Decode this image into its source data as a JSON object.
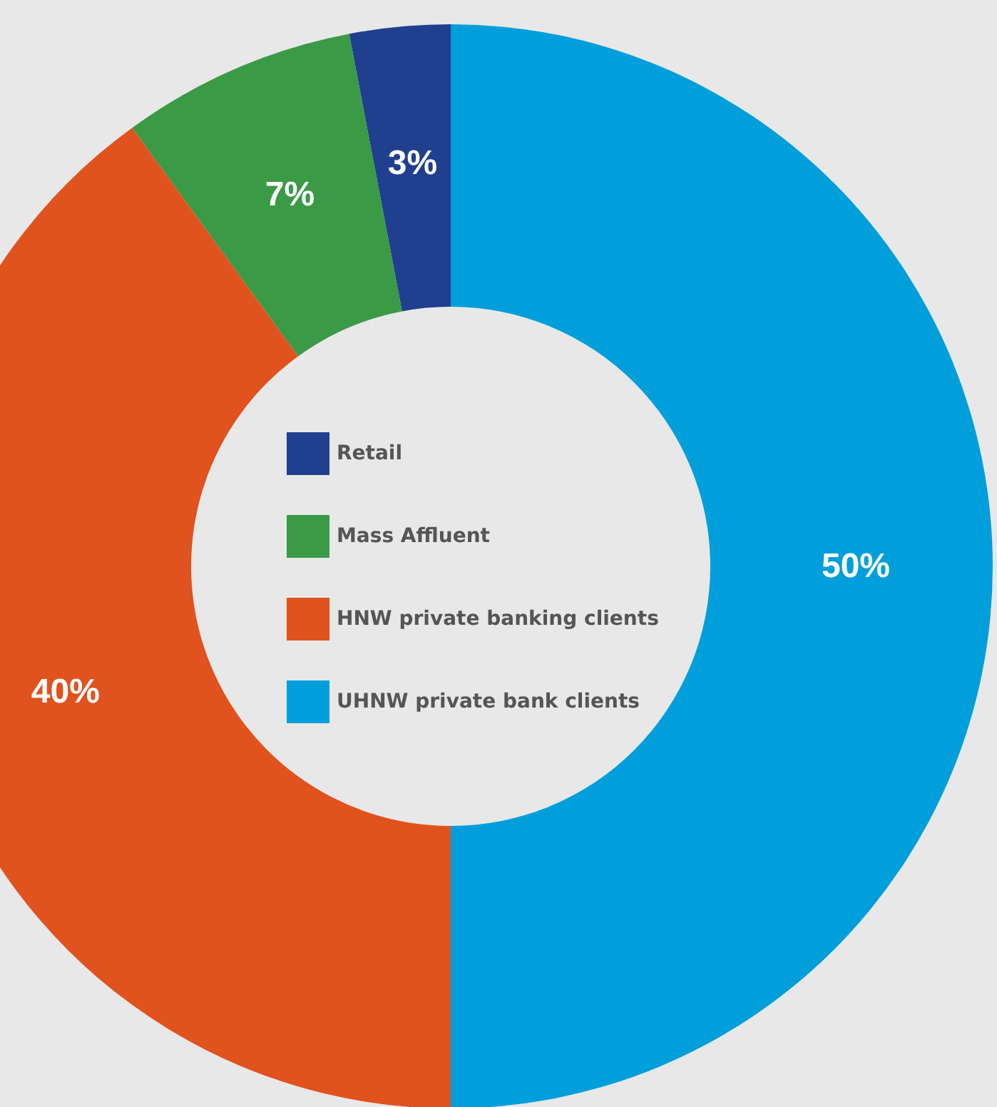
{
  "chart_data": {
    "type": "donut",
    "categories": [
      "Retail",
      "Mass Affluent",
      "HNW private banking clients",
      "UHNW private bank clients"
    ],
    "values": [
      3,
      7,
      40,
      50
    ],
    "colors": [
      "#203f8f",
      "#3a9a46",
      "#e0521e",
      "#009fdb"
    ],
    "value_labels": [
      "3%",
      "7%",
      "40%",
      "50%"
    ],
    "legend": "center"
  }
}
